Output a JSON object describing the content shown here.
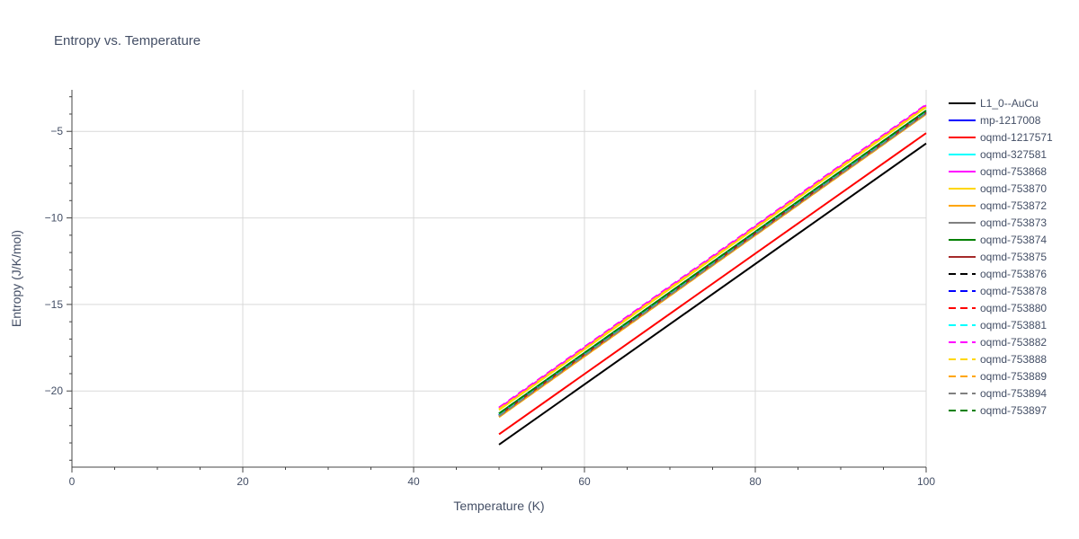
{
  "chart_data": {
    "type": "line",
    "title": "Entropy vs. Temperature",
    "xlabel": "Temperature (K)",
    "ylabel": "Entropy (J/K/mol)",
    "xlim": [
      0,
      100
    ],
    "ylim": [
      -24.4,
      -2.6
    ],
    "xticks": [
      0,
      20,
      40,
      60,
      80,
      100
    ],
    "xtick_labels": [
      "0",
      "20",
      "40",
      "60",
      "80",
      "100"
    ],
    "yticks": [
      -20,
      -15,
      -10,
      -5
    ],
    "ytick_labels": [
      "−20",
      "−15",
      "−10",
      "−5"
    ],
    "grid": true,
    "legend_position": "right",
    "series": [
      {
        "name": "L1_0--AuCu",
        "color": "#000000",
        "dash": "solid",
        "x": [
          50,
          100
        ],
        "y": [
          -23.1,
          -5.7
        ]
      },
      {
        "name": "mp-1217008",
        "color": "#0000ff",
        "dash": "solid",
        "x": [
          50,
          100
        ],
        "y": [
          -21.4,
          -3.9
        ]
      },
      {
        "name": "oqmd-1217571",
        "color": "#ff0000",
        "dash": "solid",
        "x": [
          50,
          100
        ],
        "y": [
          -22.5,
          -5.1
        ]
      },
      {
        "name": "oqmd-327581",
        "color": "#00ffff",
        "dash": "solid",
        "x": [
          50,
          100
        ],
        "y": [
          -21.3,
          -3.85
        ]
      },
      {
        "name": "oqmd-753868",
        "color": "#ff00ff",
        "dash": "solid",
        "x": [
          50,
          100
        ],
        "y": [
          -21.0,
          -3.5
        ]
      },
      {
        "name": "oqmd-753870",
        "color": "#ffd700",
        "dash": "solid",
        "x": [
          50,
          100
        ],
        "y": [
          -21.1,
          -3.6
        ]
      },
      {
        "name": "oqmd-753872",
        "color": "#ffa500",
        "dash": "solid",
        "x": [
          50,
          100
        ],
        "y": [
          -21.5,
          -4.0
        ]
      },
      {
        "name": "oqmd-753873",
        "color": "#808080",
        "dash": "solid",
        "x": [
          50,
          100
        ],
        "y": [
          -21.4,
          -3.95
        ]
      },
      {
        "name": "oqmd-753874",
        "color": "#008000",
        "dash": "solid",
        "x": [
          50,
          100
        ],
        "y": [
          -21.3,
          -3.8
        ]
      },
      {
        "name": "oqmd-753875",
        "color": "#a52a2a",
        "dash": "solid",
        "x": [
          50,
          100
        ],
        "y": [
          -21.4,
          -3.9
        ]
      },
      {
        "name": "oqmd-753876",
        "color": "#000000",
        "dash": "dash",
        "x": [
          50,
          100
        ],
        "y": [
          -21.4,
          -3.9
        ]
      },
      {
        "name": "oqmd-753878",
        "color": "#0000ff",
        "dash": "dash",
        "x": [
          50,
          100
        ],
        "y": [
          -21.4,
          -3.9
        ]
      },
      {
        "name": "oqmd-753880",
        "color": "#ff0000",
        "dash": "dash",
        "x": [
          50,
          100
        ],
        "y": [
          -21.45,
          -3.95
        ]
      },
      {
        "name": "oqmd-753881",
        "color": "#00ffff",
        "dash": "dash",
        "x": [
          50,
          100
        ],
        "y": [
          -21.35,
          -3.85
        ]
      },
      {
        "name": "oqmd-753882",
        "color": "#ff00ff",
        "dash": "dash",
        "x": [
          50,
          100
        ],
        "y": [
          -20.95,
          -3.45
        ]
      },
      {
        "name": "oqmd-753888",
        "color": "#ffd700",
        "dash": "dash",
        "x": [
          50,
          100
        ],
        "y": [
          -21.05,
          -3.55
        ]
      },
      {
        "name": "oqmd-753889",
        "color": "#ffa500",
        "dash": "dash",
        "x": [
          50,
          100
        ],
        "y": [
          -21.5,
          -4.0
        ]
      },
      {
        "name": "oqmd-753894",
        "color": "#808080",
        "dash": "dash",
        "x": [
          50,
          100
        ],
        "y": [
          -21.45,
          -3.95
        ]
      },
      {
        "name": "oqmd-753897",
        "color": "#008000",
        "dash": "dash",
        "x": [
          50,
          100
        ],
        "y": [
          -21.3,
          -3.8
        ]
      }
    ]
  }
}
